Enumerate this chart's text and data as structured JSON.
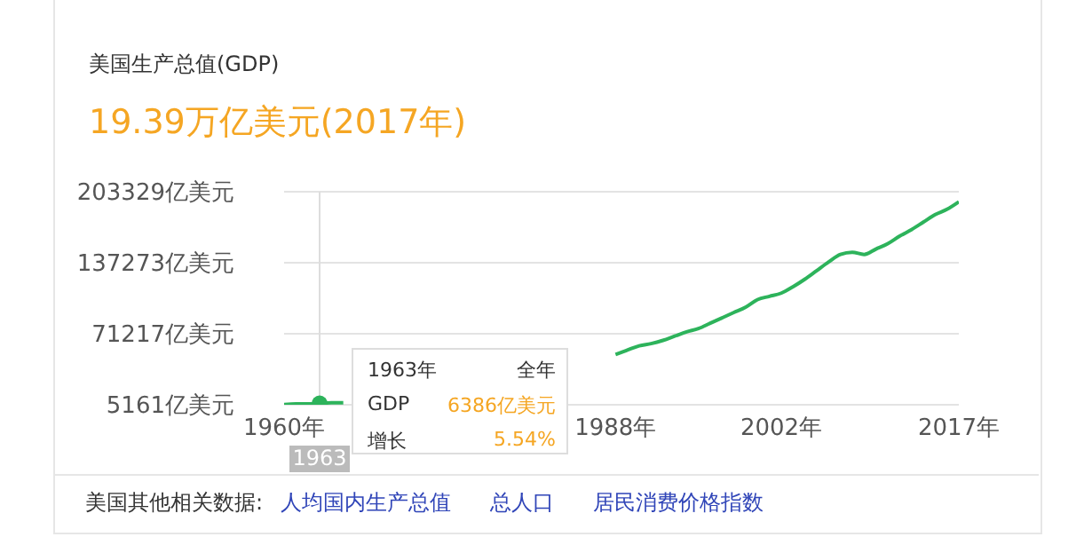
{
  "chart_data": {
    "type": "line",
    "title": "美国生产总值(GDP)",
    "subtitle": "19.39万亿美元(2017年)",
    "xlim": [
      1960,
      2017
    ],
    "xticks": [
      {
        "value": 1960,
        "label": "1960年"
      },
      {
        "value": 1988,
        "label": "1988年"
      },
      {
        "value": 2002,
        "label": "2002年"
      },
      {
        "value": 2017,
        "label": "2017年"
      }
    ],
    "ylim": [
      5161,
      203329
    ],
    "yticks": [
      {
        "value": 5161,
        "label": "5161亿美元"
      },
      {
        "value": 71217,
        "label": "71217亿美元"
      },
      {
        "value": 137273,
        "label": "137273亿美元"
      },
      {
        "value": 203329,
        "label": "203329亿美元"
      }
    ],
    "grid": "y",
    "series": [
      {
        "color": "#2db35b",
        "marker": "none",
        "x": [
          1960,
          1961,
          1962,
          1963,
          1964,
          1965,
          1975,
          1988,
          1989,
          1990,
          1991,
          1992,
          1993,
          1994,
          1995,
          1996,
          1997,
          1998,
          1999,
          2000,
          2001,
          2002,
          2003,
          2004,
          2005,
          2006,
          2007,
          2008,
          2009,
          2010,
          2011,
          2012,
          2013,
          2014,
          2015,
          2016,
          2017
        ],
        "values": [
          5400,
          6000,
          6000,
          6386,
          7000,
          7000,
          null,
          52000,
          56000,
          60000,
          62000,
          65000,
          69000,
          73000,
          76000,
          81000,
          86000,
          91000,
          96000,
          103000,
          106000,
          109000,
          115000,
          122000,
          130000,
          138000,
          145000,
          147000,
          145000,
          150000,
          155000,
          162000,
          168000,
          175000,
          182000,
          187000,
          194000
        ]
      },
      {
        "type": "scatter",
        "color": "#2db35b",
        "marker": "circle",
        "x": [
          1963
        ],
        "values": [
          6386
        ]
      }
    ],
    "ref_lines": [
      {
        "axis": "x",
        "value": 1963,
        "color": "#dddddd"
      }
    ],
    "annotations": [
      "1963",
      "1963年",
      "全年",
      "GDP",
      "6386亿美元",
      "增长",
      "5.54%",
      "美国其他相关数据:",
      "人均国内生产总值",
      "总人口",
      "居民消费价格指数"
    ]
  }
}
